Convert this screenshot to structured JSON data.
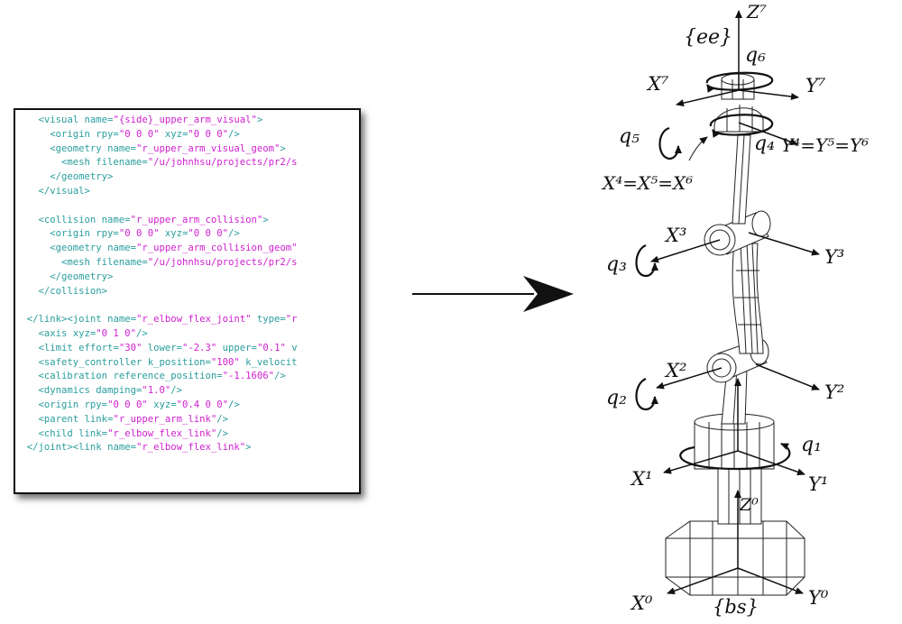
{
  "colors": {
    "tag": "#2a9d9d",
    "attr": "#2a9d9d",
    "value": "#d020d0",
    "text": "#111111",
    "panel_border": "#111111"
  },
  "code_lines": [
    [
      {
        "c": "tag",
        "t": "    <visual "
      },
      {
        "c": "attr",
        "t": "name="
      },
      {
        "c": "value",
        "t": "\"{side}_upper_arm_visual\""
      },
      {
        "c": "tag",
        "t": ">"
      }
    ],
    [
      {
        "c": "tag",
        "t": "      <origin "
      },
      {
        "c": "attr",
        "t": "rpy="
      },
      {
        "c": "value",
        "t": "\"0 0 0\""
      },
      {
        "c": "attr",
        "t": " xyz="
      },
      {
        "c": "value",
        "t": "\"0 0 0\""
      },
      {
        "c": "tag",
        "t": "/>"
      }
    ],
    [
      {
        "c": "tag",
        "t": "      <geometry "
      },
      {
        "c": "attr",
        "t": "name="
      },
      {
        "c": "value",
        "t": "\"r_upper_arm_visual_geom\""
      },
      {
        "c": "tag",
        "t": ">"
      }
    ],
    [
      {
        "c": "tag",
        "t": "        <mesh "
      },
      {
        "c": "attr",
        "t": "filename="
      },
      {
        "c": "value",
        "t": "\"/u/johnhsu/projects/pr2/s"
      }
    ],
    [
      {
        "c": "tag",
        "t": "      </geometry>"
      }
    ],
    [
      {
        "c": "tag",
        "t": "    </visual>"
      }
    ],
    [],
    [
      {
        "c": "tag",
        "t": "    <collision "
      },
      {
        "c": "attr",
        "t": "name="
      },
      {
        "c": "value",
        "t": "\"r_upper_arm_collision\""
      },
      {
        "c": "tag",
        "t": ">"
      }
    ],
    [
      {
        "c": "tag",
        "t": "      <origin "
      },
      {
        "c": "attr",
        "t": "rpy="
      },
      {
        "c": "value",
        "t": "\"0 0 0\""
      },
      {
        "c": "attr",
        "t": " xyz="
      },
      {
        "c": "value",
        "t": "\"0 0 0\""
      },
      {
        "c": "tag",
        "t": "/>"
      }
    ],
    [
      {
        "c": "tag",
        "t": "      <geometry "
      },
      {
        "c": "attr",
        "t": "name="
      },
      {
        "c": "value",
        "t": "\"r_upper_arm_collision_geom\""
      }
    ],
    [
      {
        "c": "tag",
        "t": "        <mesh "
      },
      {
        "c": "attr",
        "t": "filename="
      },
      {
        "c": "value",
        "t": "\"/u/johnhsu/projects/pr2/s"
      }
    ],
    [
      {
        "c": "tag",
        "t": "      </geometry>"
      }
    ],
    [
      {
        "c": "tag",
        "t": "    </collision>"
      }
    ],
    [],
    [
      {
        "c": "tag",
        "t": "  </link><joint "
      },
      {
        "c": "attr",
        "t": "name="
      },
      {
        "c": "value",
        "t": "\"r_elbow_flex_joint\""
      },
      {
        "c": "attr",
        "t": " type="
      },
      {
        "c": "value",
        "t": "\"r"
      }
    ],
    [
      {
        "c": "tag",
        "t": "    <axis "
      },
      {
        "c": "attr",
        "t": "xyz="
      },
      {
        "c": "value",
        "t": "\"0 1 0\""
      },
      {
        "c": "tag",
        "t": "/>"
      }
    ],
    [
      {
        "c": "tag",
        "t": "    <limit "
      },
      {
        "c": "attr",
        "t": "effort="
      },
      {
        "c": "value",
        "t": "\"30\""
      },
      {
        "c": "attr",
        "t": " lower="
      },
      {
        "c": "value",
        "t": "\"-2.3\""
      },
      {
        "c": "attr",
        "t": " upper="
      },
      {
        "c": "value",
        "t": "\"0.1\""
      },
      {
        "c": "attr",
        "t": " v"
      }
    ],
    [
      {
        "c": "tag",
        "t": "    <safety_controller "
      },
      {
        "c": "attr",
        "t": "k_position="
      },
      {
        "c": "value",
        "t": "\"100\""
      },
      {
        "c": "attr",
        "t": " k_velocit"
      }
    ],
    [
      {
        "c": "tag",
        "t": "    <calibration "
      },
      {
        "c": "attr",
        "t": "reference_position="
      },
      {
        "c": "value",
        "t": "\"-1.1606\""
      },
      {
        "c": "tag",
        "t": "/>"
      }
    ],
    [
      {
        "c": "tag",
        "t": "    <dynamics "
      },
      {
        "c": "attr",
        "t": "damping="
      },
      {
        "c": "value",
        "t": "\"1.0\""
      },
      {
        "c": "tag",
        "t": "/>"
      }
    ],
    [
      {
        "c": "tag",
        "t": "    <origin "
      },
      {
        "c": "attr",
        "t": "rpy="
      },
      {
        "c": "value",
        "t": "\"0 0 0\""
      },
      {
        "c": "attr",
        "t": " xyz="
      },
      {
        "c": "value",
        "t": "\"0.4 0 0\""
      },
      {
        "c": "tag",
        "t": "/>"
      }
    ],
    [
      {
        "c": "tag",
        "t": "    <parent "
      },
      {
        "c": "attr",
        "t": "link="
      },
      {
        "c": "value",
        "t": "\"r_upper_arm_link\""
      },
      {
        "c": "tag",
        "t": "/>"
      }
    ],
    [
      {
        "c": "tag",
        "t": "    <child "
      },
      {
        "c": "attr",
        "t": "link="
      },
      {
        "c": "value",
        "t": "\"r_elbow_flex_link\""
      },
      {
        "c": "tag",
        "t": "/>"
      }
    ],
    [
      {
        "c": "tag",
        "t": "  </joint><link "
      },
      {
        "c": "attr",
        "t": "name="
      },
      {
        "c": "value",
        "t": "\"r_elbow_flex_link\""
      },
      {
        "c": "tag",
        "t": ">"
      }
    ]
  ],
  "arrow_icon": "right-arrow-icon",
  "diagram": {
    "labels": {
      "z7": "Z⁷",
      "ee": "{ee}",
      "q6": "q₆",
      "x7": "X⁷",
      "y7": "Y⁷",
      "q5": "q₅",
      "q4": "q₄",
      "y456": "Y⁴=Y⁵=Y⁶",
      "x456": "X⁴=X⁵=X⁶",
      "x3": "X³",
      "q3": "q₃",
      "y3": "Y³",
      "x2": "X²",
      "q2": "q₂",
      "y2": "Y²",
      "q1": "q₁",
      "x1": "X¹",
      "y1": "Y¹",
      "z0": "Z⁰",
      "x0": "X⁰",
      "bs": "{bs}",
      "y0": "Y⁰"
    }
  }
}
